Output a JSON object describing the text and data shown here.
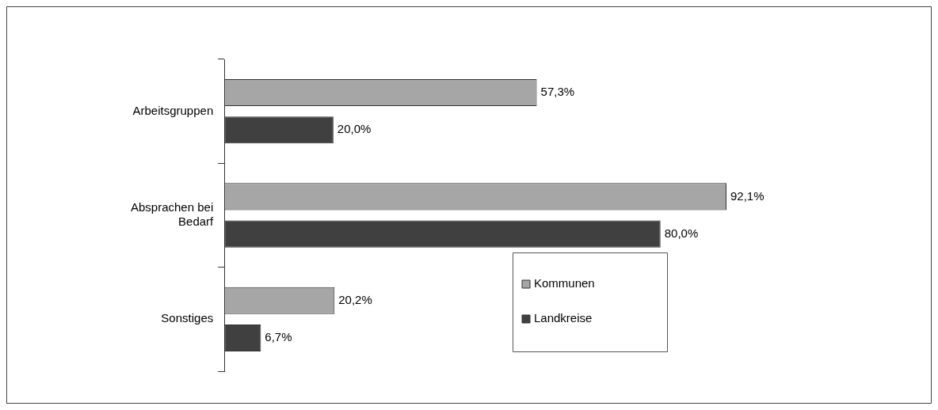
{
  "chart_data": {
    "type": "bar",
    "orientation": "horizontal",
    "categories": [
      "Arbeitsgruppen",
      "Absprachen bei Bedarf",
      "Sonstiges"
    ],
    "series": [
      {
        "name": "Kommunen",
        "color": "#a6a6a6",
        "values": [
          57.3,
          92.1,
          20.2
        ],
        "value_labels": [
          "57,3%",
          "92,1%",
          "20,2%"
        ]
      },
      {
        "name": "Landkreise",
        "color": "#404040",
        "values": [
          20.0,
          80.0,
          6.7
        ],
        "value_labels": [
          "20,0%",
          "80,0%",
          "6,7%"
        ]
      }
    ],
    "legend": "bottom right"
  }
}
